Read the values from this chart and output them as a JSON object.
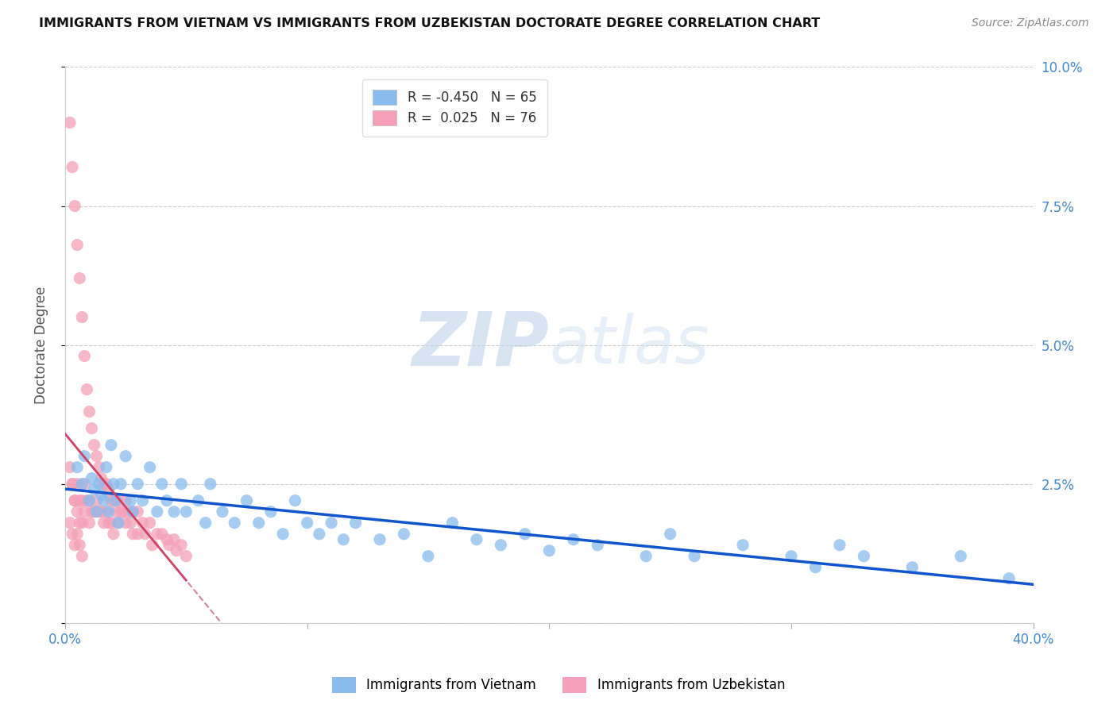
{
  "title": "IMMIGRANTS FROM VIETNAM VS IMMIGRANTS FROM UZBEKISTAN DOCTORATE DEGREE CORRELATION CHART",
  "source_text": "Source: ZipAtlas.com",
  "ylabel": "Doctorate Degree",
  "xlim": [
    0.0,
    0.4
  ],
  "ylim": [
    0.0,
    0.1
  ],
  "xtick_labels": [
    "0.0%",
    "",
    "",
    "",
    "40.0%"
  ],
  "xtick_values": [
    0.0,
    0.1,
    0.2,
    0.3,
    0.4
  ],
  "ytick_labels_right": [
    "",
    "2.5%",
    "5.0%",
    "7.5%",
    "10.0%"
  ],
  "ytick_values": [
    0.0,
    0.025,
    0.05,
    0.075,
    0.1
  ],
  "legend_label_blue": "Immigrants from Vietnam",
  "legend_label_pink": "Immigrants from Uzbekistan",
  "r_blue": -0.45,
  "n_blue": 65,
  "r_pink": 0.025,
  "n_pink": 76,
  "color_blue": "#88bbee",
  "color_pink": "#f4a0b8",
  "line_color_blue": "#1155cc",
  "line_color_pink": "#cc4466",
  "line_color_pink_dash": "#cc8899",
  "background_color": "#ffffff",
  "grid_color": "#cccccc",
  "title_color": "#111111",
  "axis_label_color": "#4488cc",
  "watermark_color": "#ccddf5",
  "blue_scatter_x": [
    0.005,
    0.007,
    0.008,
    0.01,
    0.011,
    0.012,
    0.013,
    0.014,
    0.015,
    0.016,
    0.017,
    0.018,
    0.019,
    0.02,
    0.021,
    0.022,
    0.023,
    0.025,
    0.027,
    0.028,
    0.03,
    0.032,
    0.035,
    0.038,
    0.04,
    0.042,
    0.045,
    0.048,
    0.05,
    0.055,
    0.058,
    0.06,
    0.065,
    0.07,
    0.075,
    0.08,
    0.085,
    0.09,
    0.095,
    0.1,
    0.105,
    0.11,
    0.115,
    0.12,
    0.13,
    0.14,
    0.15,
    0.16,
    0.17,
    0.18,
    0.19,
    0.2,
    0.21,
    0.22,
    0.24,
    0.25,
    0.26,
    0.28,
    0.3,
    0.31,
    0.32,
    0.33,
    0.35,
    0.37,
    0.39
  ],
  "blue_scatter_y": [
    0.028,
    0.025,
    0.03,
    0.022,
    0.026,
    0.024,
    0.02,
    0.025,
    0.023,
    0.022,
    0.028,
    0.02,
    0.032,
    0.025,
    0.022,
    0.018,
    0.025,
    0.03,
    0.022,
    0.02,
    0.025,
    0.022,
    0.028,
    0.02,
    0.025,
    0.022,
    0.02,
    0.025,
    0.02,
    0.022,
    0.018,
    0.025,
    0.02,
    0.018,
    0.022,
    0.018,
    0.02,
    0.016,
    0.022,
    0.018,
    0.016,
    0.018,
    0.015,
    0.018,
    0.015,
    0.016,
    0.012,
    0.018,
    0.015,
    0.014,
    0.016,
    0.013,
    0.015,
    0.014,
    0.012,
    0.016,
    0.012,
    0.014,
    0.012,
    0.01,
    0.014,
    0.012,
    0.01,
    0.012,
    0.008
  ],
  "pink_scatter_x": [
    0.002,
    0.003,
    0.003,
    0.004,
    0.004,
    0.005,
    0.005,
    0.005,
    0.006,
    0.006,
    0.006,
    0.007,
    0.007,
    0.007,
    0.008,
    0.008,
    0.008,
    0.009,
    0.009,
    0.01,
    0.01,
    0.01,
    0.011,
    0.011,
    0.012,
    0.012,
    0.013,
    0.013,
    0.014,
    0.014,
    0.015,
    0.015,
    0.016,
    0.016,
    0.017,
    0.017,
    0.018,
    0.018,
    0.019,
    0.019,
    0.02,
    0.02,
    0.021,
    0.022,
    0.022,
    0.023,
    0.024,
    0.025,
    0.025,
    0.026,
    0.027,
    0.028,
    0.028,
    0.03,
    0.03,
    0.032,
    0.033,
    0.035,
    0.036,
    0.038,
    0.04,
    0.042,
    0.043,
    0.045,
    0.046,
    0.048,
    0.05,
    0.002,
    0.003,
    0.004,
    0.002,
    0.003,
    0.004,
    0.005,
    0.006,
    0.007
  ],
  "pink_scatter_y": [
    0.09,
    0.082,
    0.025,
    0.075,
    0.022,
    0.068,
    0.025,
    0.02,
    0.062,
    0.022,
    0.018,
    0.055,
    0.022,
    0.018,
    0.048,
    0.025,
    0.02,
    0.042,
    0.022,
    0.038,
    0.022,
    0.018,
    0.035,
    0.02,
    0.032,
    0.02,
    0.03,
    0.022,
    0.028,
    0.02,
    0.026,
    0.02,
    0.025,
    0.018,
    0.025,
    0.02,
    0.024,
    0.018,
    0.022,
    0.018,
    0.022,
    0.016,
    0.02,
    0.022,
    0.018,
    0.02,
    0.02,
    0.022,
    0.018,
    0.02,
    0.018,
    0.02,
    0.016,
    0.02,
    0.016,
    0.018,
    0.016,
    0.018,
    0.014,
    0.016,
    0.016,
    0.015,
    0.014,
    0.015,
    0.013,
    0.014,
    0.012,
    0.028,
    0.025,
    0.022,
    0.018,
    0.016,
    0.014,
    0.016,
    0.014,
    0.012
  ]
}
